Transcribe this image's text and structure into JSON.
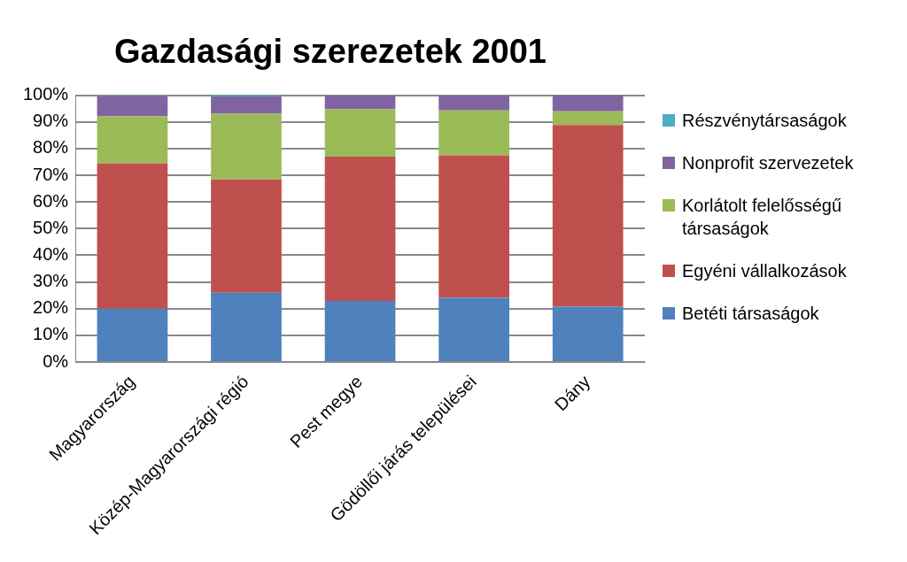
{
  "chart_data": {
    "type": "bar",
    "title": "Gazdasági szerezetek 2001",
    "stacked": true,
    "legend": "right",
    "grid": "y",
    "categories": [
      "Magyarország",
      "Közép-Magyarországi régió",
      "Pest megye",
      "Gödöllői járás települései",
      "Dány"
    ],
    "series": [
      {
        "name": "Betéti társaságok",
        "color": "#4f81bd",
        "values": [
          20,
          26,
          22.9,
          24.1,
          20.8
        ]
      },
      {
        "name": "Egyéni vállalkozások",
        "color": "#c0504d",
        "values": [
          54.5,
          42.4,
          54.1,
          53.4,
          68
        ]
      },
      {
        "name": "Korlátolt felelősségű társaságok",
        "color": "#9bbb59",
        "values": [
          17.6,
          24.7,
          17.8,
          16.8,
          5.2
        ]
      },
      {
        "name": "Nonprofit szervezetek",
        "color": "#8064a2",
        "values": [
          7.6,
          6.4,
          5.1,
          5.6,
          6
        ]
      },
      {
        "name": "Részvénytársaságok",
        "color": "#4bacc6",
        "values": [
          0.3,
          0.5,
          null,
          null,
          null
        ]
      }
    ],
    "ylim": [
      0,
      100
    ],
    "yticks": [
      {
        "value": 0,
        "label": "0%"
      },
      {
        "value": 10,
        "label": "10%"
      },
      {
        "value": 20,
        "label": "20%"
      },
      {
        "value": 30,
        "label": "30%"
      },
      {
        "value": 40,
        "label": "40%"
      },
      {
        "value": 50,
        "label": "50%"
      },
      {
        "value": 60,
        "label": "60%"
      },
      {
        "value": 70,
        "label": "70%"
      },
      {
        "value": 80,
        "label": "80%"
      },
      {
        "value": 90,
        "label": "90%"
      },
      {
        "value": 100,
        "label": "100%"
      }
    ]
  }
}
